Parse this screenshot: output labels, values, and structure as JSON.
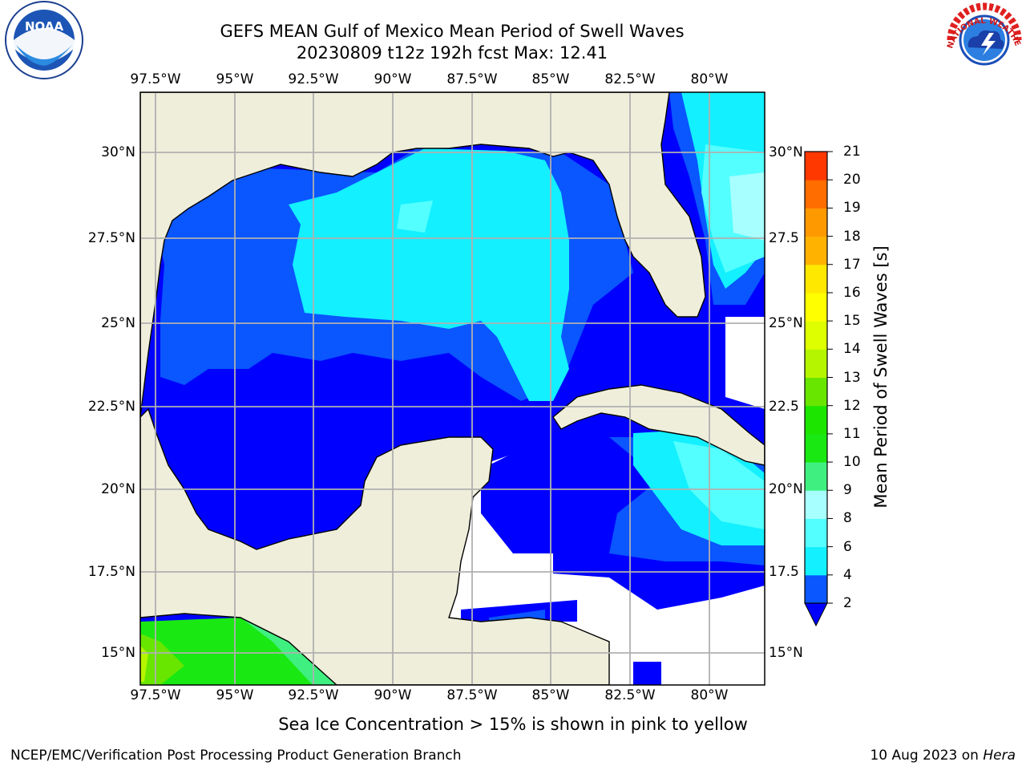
{
  "header": {
    "title": "GEFS MEAN Gulf of Mexico Mean Period of Swell Waves",
    "subtitle": "20230809 t12z 192h fcst   Max: 12.41"
  },
  "logos": {
    "left": {
      "icon": "noaa-logo-icon",
      "text": "NOAA"
    },
    "right": {
      "icon": "nws-logo-icon",
      "text": "NATIONAL WEATHER SERVICE"
    }
  },
  "map": {
    "lon_labels": [
      "97.5°W",
      "95°W",
      "92.5°W",
      "90°W",
      "87.5°W",
      "85°W",
      "82.5°W",
      "80°W"
    ],
    "lat_labels": [
      "30°N",
      "27.5°N",
      "25°N",
      "22.5°N",
      "20°N",
      "17.5°N",
      "15°N"
    ],
    "lat_labels_right": [
      "30°N",
      "27.5",
      "25°N",
      "22.5",
      "20°N",
      "17.5",
      "15°N"
    ],
    "colors": {
      "land": "#efeedb",
      "missing": "#ffffff",
      "grid": "#b0b0b0"
    }
  },
  "colorbar": {
    "title": "Mean Period of Swell Waves [s]",
    "ticks": [
      "2",
      "4",
      "6",
      "8",
      "9",
      "10",
      "11",
      "12",
      "13",
      "14",
      "15",
      "16",
      "17",
      "18",
      "19",
      "20",
      "21"
    ],
    "colors": [
      "#0a56ff",
      "#13f0ff",
      "#54ffff",
      "#a8ffff",
      "#3ff080",
      "#1ae813",
      "#1ce600",
      "#68e600",
      "#b5f500",
      "#ddff00",
      "#ffff00",
      "#ffe800",
      "#ffb300",
      "#ff9900",
      "#ff6c00",
      "#ff3800",
      "#ff0000"
    ],
    "under_color": "#0000ff"
  },
  "footer": {
    "note": "Sea Ice Concentration > 15% is shown in pink to yellow",
    "credit": "NCEP/EMC/Verification Post Processing Product Generation Branch",
    "date_prefix": "10 Aug 2023 on ",
    "date_host": "Hera"
  }
}
